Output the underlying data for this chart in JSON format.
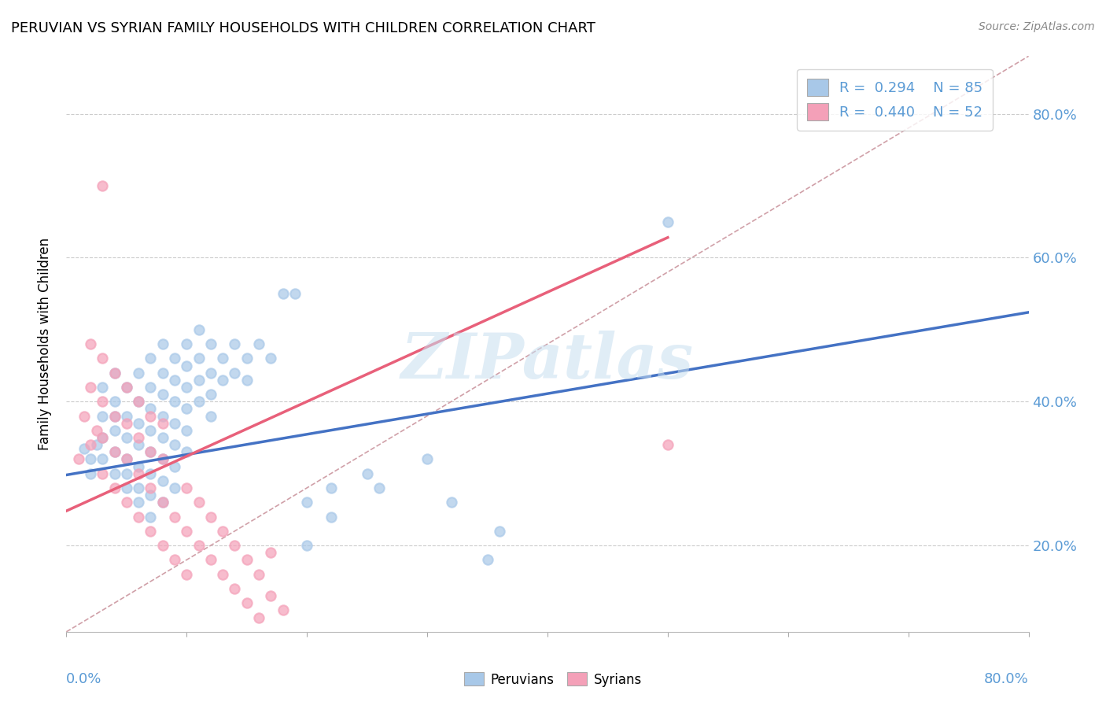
{
  "title": "PERUVIAN VS SYRIAN FAMILY HOUSEHOLDS WITH CHILDREN CORRELATION CHART",
  "source": "Source: ZipAtlas.com",
  "ylabel": "Family Households with Children",
  "xlim": [
    0.0,
    0.8
  ],
  "ylim": [
    0.08,
    0.88
  ],
  "yticks": [
    0.2,
    0.4,
    0.6,
    0.8
  ],
  "ytick_labels": [
    "20.0%",
    "40.0%",
    "60.0%",
    "80.0%"
  ],
  "peruvian_R": 0.294,
  "peruvian_N": 85,
  "syrian_R": 0.44,
  "syrian_N": 52,
  "peruvian_color": "#a8c8e8",
  "syrian_color": "#f4a0b8",
  "peruvian_line_color": "#4472c4",
  "syrian_line_color": "#e8607a",
  "diagonal_color": "#d0a0a8",
  "watermark": "ZIPatlas",
  "peruvian_line": [
    [
      0.0,
      0.298
    ],
    [
      0.8,
      0.524
    ]
  ],
  "syrian_line": [
    [
      0.0,
      0.248
    ],
    [
      0.5,
      0.628
    ]
  ],
  "peruvian_scatter": [
    [
      0.015,
      0.335
    ],
    [
      0.02,
      0.32
    ],
    [
      0.02,
      0.3
    ],
    [
      0.025,
      0.34
    ],
    [
      0.03,
      0.38
    ],
    [
      0.03,
      0.42
    ],
    [
      0.03,
      0.35
    ],
    [
      0.03,
      0.32
    ],
    [
      0.04,
      0.4
    ],
    [
      0.04,
      0.36
    ],
    [
      0.04,
      0.33
    ],
    [
      0.04,
      0.3
    ],
    [
      0.04,
      0.44
    ],
    [
      0.04,
      0.38
    ],
    [
      0.05,
      0.42
    ],
    [
      0.05,
      0.38
    ],
    [
      0.05,
      0.35
    ],
    [
      0.05,
      0.32
    ],
    [
      0.05,
      0.3
    ],
    [
      0.05,
      0.28
    ],
    [
      0.06,
      0.44
    ],
    [
      0.06,
      0.4
    ],
    [
      0.06,
      0.37
    ],
    [
      0.06,
      0.34
    ],
    [
      0.06,
      0.31
    ],
    [
      0.06,
      0.28
    ],
    [
      0.06,
      0.26
    ],
    [
      0.07,
      0.46
    ],
    [
      0.07,
      0.42
    ],
    [
      0.07,
      0.39
    ],
    [
      0.07,
      0.36
    ],
    [
      0.07,
      0.33
    ],
    [
      0.07,
      0.3
    ],
    [
      0.07,
      0.27
    ],
    [
      0.07,
      0.24
    ],
    [
      0.08,
      0.48
    ],
    [
      0.08,
      0.44
    ],
    [
      0.08,
      0.41
    ],
    [
      0.08,
      0.38
    ],
    [
      0.08,
      0.35
    ],
    [
      0.08,
      0.32
    ],
    [
      0.08,
      0.29
    ],
    [
      0.08,
      0.26
    ],
    [
      0.09,
      0.46
    ],
    [
      0.09,
      0.43
    ],
    [
      0.09,
      0.4
    ],
    [
      0.09,
      0.37
    ],
    [
      0.09,
      0.34
    ],
    [
      0.09,
      0.31
    ],
    [
      0.09,
      0.28
    ],
    [
      0.1,
      0.48
    ],
    [
      0.1,
      0.45
    ],
    [
      0.1,
      0.42
    ],
    [
      0.1,
      0.39
    ],
    [
      0.1,
      0.36
    ],
    [
      0.1,
      0.33
    ],
    [
      0.11,
      0.5
    ],
    [
      0.11,
      0.46
    ],
    [
      0.11,
      0.43
    ],
    [
      0.11,
      0.4
    ],
    [
      0.12,
      0.48
    ],
    [
      0.12,
      0.44
    ],
    [
      0.12,
      0.41
    ],
    [
      0.12,
      0.38
    ],
    [
      0.13,
      0.46
    ],
    [
      0.13,
      0.43
    ],
    [
      0.14,
      0.48
    ],
    [
      0.14,
      0.44
    ],
    [
      0.15,
      0.46
    ],
    [
      0.15,
      0.43
    ],
    [
      0.16,
      0.48
    ],
    [
      0.17,
      0.46
    ],
    [
      0.18,
      0.55
    ],
    [
      0.19,
      0.55
    ],
    [
      0.2,
      0.2
    ],
    [
      0.2,
      0.26
    ],
    [
      0.22,
      0.24
    ],
    [
      0.22,
      0.28
    ],
    [
      0.25,
      0.3
    ],
    [
      0.26,
      0.28
    ],
    [
      0.3,
      0.32
    ],
    [
      0.32,
      0.26
    ],
    [
      0.35,
      0.18
    ],
    [
      0.36,
      0.22
    ],
    [
      0.5,
      0.65
    ]
  ],
  "syrian_scatter": [
    [
      0.01,
      0.32
    ],
    [
      0.015,
      0.38
    ],
    [
      0.02,
      0.34
    ],
    [
      0.02,
      0.42
    ],
    [
      0.02,
      0.48
    ],
    [
      0.025,
      0.36
    ],
    [
      0.03,
      0.3
    ],
    [
      0.03,
      0.35
    ],
    [
      0.03,
      0.4
    ],
    [
      0.03,
      0.46
    ],
    [
      0.04,
      0.28
    ],
    [
      0.04,
      0.33
    ],
    [
      0.04,
      0.38
    ],
    [
      0.04,
      0.44
    ],
    [
      0.05,
      0.26
    ],
    [
      0.05,
      0.32
    ],
    [
      0.05,
      0.37
    ],
    [
      0.05,
      0.42
    ],
    [
      0.06,
      0.24
    ],
    [
      0.06,
      0.3
    ],
    [
      0.06,
      0.35
    ],
    [
      0.06,
      0.4
    ],
    [
      0.07,
      0.22
    ],
    [
      0.07,
      0.28
    ],
    [
      0.07,
      0.33
    ],
    [
      0.07,
      0.38
    ],
    [
      0.08,
      0.2
    ],
    [
      0.08,
      0.26
    ],
    [
      0.08,
      0.32
    ],
    [
      0.08,
      0.37
    ],
    [
      0.09,
      0.18
    ],
    [
      0.09,
      0.24
    ],
    [
      0.1,
      0.16
    ],
    [
      0.1,
      0.22
    ],
    [
      0.1,
      0.28
    ],
    [
      0.11,
      0.2
    ],
    [
      0.11,
      0.26
    ],
    [
      0.12,
      0.18
    ],
    [
      0.12,
      0.24
    ],
    [
      0.13,
      0.16
    ],
    [
      0.13,
      0.22
    ],
    [
      0.14,
      0.14
    ],
    [
      0.14,
      0.2
    ],
    [
      0.15,
      0.12
    ],
    [
      0.15,
      0.18
    ],
    [
      0.16,
      0.1
    ],
    [
      0.16,
      0.16
    ],
    [
      0.17,
      0.13
    ],
    [
      0.17,
      0.19
    ],
    [
      0.18,
      0.11
    ],
    [
      0.5,
      0.34
    ],
    [
      0.03,
      0.7
    ]
  ]
}
